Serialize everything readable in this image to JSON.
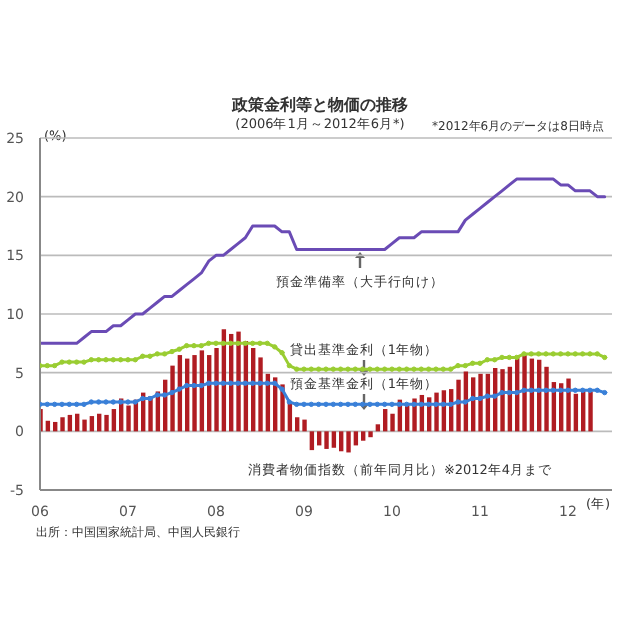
{
  "chart_data": {
    "type": "line",
    "title": "政策金利等と物価の推移",
    "subtitle": "(2006年1月～2012年6月*)",
    "ylabel": "(%)",
    "xlabel": "(年)",
    "annotations": [
      "*2012年6月のデータは8日時点",
      "出所：中国国家統計局、中国人民銀行"
    ],
    "x": [
      "2006-01",
      "2006-02",
      "2006-03",
      "2006-04",
      "2006-05",
      "2006-06",
      "2006-07",
      "2006-08",
      "2006-09",
      "2006-10",
      "2006-11",
      "2006-12",
      "2007-01",
      "2007-02",
      "2007-03",
      "2007-04",
      "2007-05",
      "2007-06",
      "2007-07",
      "2007-08",
      "2007-09",
      "2007-10",
      "2007-11",
      "2007-12",
      "2008-01",
      "2008-02",
      "2008-03",
      "2008-04",
      "2008-05",
      "2008-06",
      "2008-07",
      "2008-08",
      "2008-09",
      "2008-10",
      "2008-11",
      "2008-12",
      "2009-01",
      "2009-02",
      "2009-03",
      "2009-04",
      "2009-05",
      "2009-06",
      "2009-07",
      "2009-08",
      "2009-09",
      "2009-10",
      "2009-11",
      "2009-12",
      "2010-01",
      "2010-02",
      "2010-03",
      "2010-04",
      "2010-05",
      "2010-06",
      "2010-07",
      "2010-08",
      "2010-09",
      "2010-10",
      "2010-11",
      "2010-12",
      "2011-01",
      "2011-02",
      "2011-03",
      "2011-04",
      "2011-05",
      "2011-06",
      "2011-07",
      "2011-08",
      "2011-09",
      "2011-10",
      "2011-11",
      "2011-12",
      "2012-01",
      "2012-02",
      "2012-03",
      "2012-04",
      "2012-05",
      "2012-06"
    ],
    "series": [
      {
        "name": "預金準備率（大手行向け）",
        "color": "#6a4bb5",
        "marker": "none",
        "values": [
          7.5,
          7.5,
          7.5,
          7.5,
          7.5,
          7.5,
          8,
          8.5,
          8.5,
          8.5,
          9,
          9,
          9.5,
          10,
          10,
          10.5,
          11,
          11.5,
          11.5,
          12,
          12.5,
          13,
          13.5,
          14.5,
          15,
          15,
          15.5,
          16,
          16.5,
          17.5,
          17.5,
          17.5,
          17.5,
          17,
          17,
          15.5,
          15.5,
          15.5,
          15.5,
          15.5,
          15.5,
          15.5,
          15.5,
          15.5,
          15.5,
          15.5,
          15.5,
          15.5,
          16,
          16.5,
          16.5,
          16.5,
          17,
          17,
          17,
          17,
          17,
          17,
          18,
          18.5,
          19,
          19.5,
          20,
          20.5,
          21,
          21.5,
          21.5,
          21.5,
          21.5,
          21.5,
          21.5,
          21,
          21,
          20.5,
          20.5,
          20.5,
          20,
          20
        ]
      },
      {
        "name": "消費者物価指数（前年同月比）※2012年4月まで",
        "type": "bar",
        "color": "#b01c22",
        "values": [
          1.9,
          0.9,
          0.8,
          1.2,
          1.4,
          1.5,
          1.0,
          1.3,
          1.5,
          1.4,
          1.9,
          2.8,
          2.2,
          2.7,
          3.3,
          3.0,
          3.4,
          4.4,
          5.6,
          6.5,
          6.2,
          6.5,
          6.9,
          6.5,
          7.1,
          8.7,
          8.3,
          8.5,
          7.7,
          7.1,
          6.3,
          4.9,
          4.6,
          4.0,
          2.4,
          1.2,
          1.0,
          -1.6,
          -1.2,
          -1.5,
          -1.4,
          -1.7,
          -1.8,
          -1.2,
          -0.8,
          -0.5,
          0.6,
          1.9,
          1.5,
          2.7,
          2.4,
          2.8,
          3.1,
          2.9,
          3.3,
          3.5,
          3.6,
          4.4,
          5.1,
          4.6,
          4.9,
          4.9,
          5.4,
          5.3,
          5.5,
          6.4,
          6.5,
          6.2,
          6.1,
          5.5,
          4.2,
          4.1,
          4.5,
          3.2,
          3.6,
          3.4,
          null,
          null
        ]
      },
      {
        "name": "貸出基準金利（1年物）",
        "color": "#9acd32",
        "marker": "circle",
        "values": [
          5.6,
          5.6,
          5.6,
          5.9,
          5.9,
          5.9,
          5.9,
          6.1,
          6.1,
          6.1,
          6.1,
          6.1,
          6.1,
          6.1,
          6.4,
          6.4,
          6.6,
          6.6,
          6.8,
          7.0,
          7.3,
          7.3,
          7.3,
          7.5,
          7.5,
          7.5,
          7.5,
          7.5,
          7.5,
          7.5,
          7.5,
          7.5,
          7.2,
          6.7,
          5.6,
          5.3,
          5.3,
          5.3,
          5.3,
          5.3,
          5.3,
          5.3,
          5.3,
          5.3,
          5.3,
          5.3,
          5.3,
          5.3,
          5.3,
          5.3,
          5.3,
          5.3,
          5.3,
          5.3,
          5.3,
          5.3,
          5.3,
          5.6,
          5.6,
          5.8,
          5.8,
          6.1,
          6.1,
          6.3,
          6.3,
          6.3,
          6.6,
          6.6,
          6.6,
          6.6,
          6.6,
          6.6,
          6.6,
          6.6,
          6.6,
          6.6,
          6.6,
          6.3
        ]
      },
      {
        "name": "預金基準金利（1年物）",
        "color": "#3a80d8",
        "marker": "circle",
        "values": [
          2.3,
          2.3,
          2.3,
          2.3,
          2.3,
          2.3,
          2.3,
          2.5,
          2.5,
          2.5,
          2.5,
          2.5,
          2.5,
          2.5,
          2.8,
          2.8,
          3.1,
          3.1,
          3.3,
          3.6,
          3.9,
          3.9,
          3.9,
          4.1,
          4.1,
          4.1,
          4.1,
          4.1,
          4.1,
          4.1,
          4.1,
          4.1,
          4.1,
          3.6,
          2.5,
          2.3,
          2.3,
          2.3,
          2.3,
          2.3,
          2.3,
          2.3,
          2.3,
          2.3,
          2.3,
          2.3,
          2.3,
          2.3,
          2.3,
          2.3,
          2.3,
          2.3,
          2.3,
          2.3,
          2.3,
          2.3,
          2.3,
          2.5,
          2.5,
          2.8,
          2.8,
          3.0,
          3.0,
          3.3,
          3.3,
          3.3,
          3.5,
          3.5,
          3.5,
          3.5,
          3.5,
          3.5,
          3.5,
          3.5,
          3.5,
          3.5,
          3.5,
          3.3
        ]
      }
    ],
    "xlim": [
      "2006-01",
      "2012-07"
    ],
    "xticks": [
      {
        "value": "2006-01",
        "label": "06"
      },
      {
        "value": "2007-01",
        "label": "07"
      },
      {
        "value": "2008-01",
        "label": "08"
      },
      {
        "value": "2009-01",
        "label": "09"
      },
      {
        "value": "2010-01",
        "label": "10"
      },
      {
        "value": "2011-01",
        "label": "11"
      },
      {
        "value": "2012-01",
        "label": "12"
      }
    ],
    "ylim": [
      -5,
      25
    ],
    "yticks": [
      -5,
      0,
      5,
      10,
      15,
      20,
      25
    ],
    "grid": "y",
    "legend": false
  }
}
